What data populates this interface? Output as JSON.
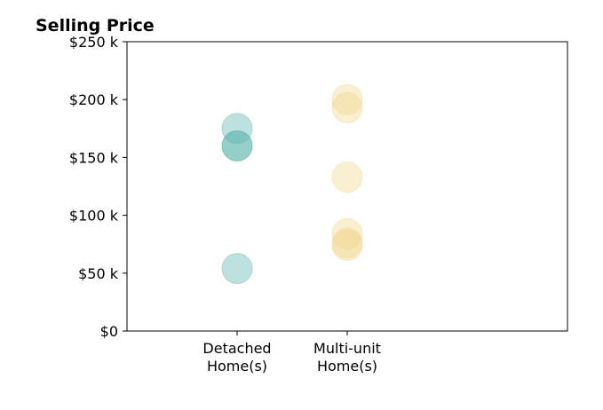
{
  "chart_data": {
    "type": "scatter",
    "title": "Selling Price",
    "xlabel": "",
    "ylabel": "",
    "categories": [
      [
        "Detached",
        "Home(s)"
      ],
      [
        "Multi-unit",
        "Home(s)"
      ]
    ],
    "ylim": [
      0,
      250
    ],
    "yticks": [
      0,
      50,
      100,
      150,
      200,
      250
    ],
    "ytick_labels": [
      "$0",
      "$50 k",
      "$100 k",
      "$150 k",
      "$200 k",
      "$250 k"
    ],
    "grid": false,
    "series": [
      {
        "category_index": 0,
        "color": "#5ab4ac",
        "values": [
          175,
          160,
          160,
          54
        ]
      },
      {
        "category_index": 1,
        "color": "#f0d68c",
        "values": [
          200,
          193,
          133,
          84,
          76,
          74
        ]
      }
    ]
  }
}
